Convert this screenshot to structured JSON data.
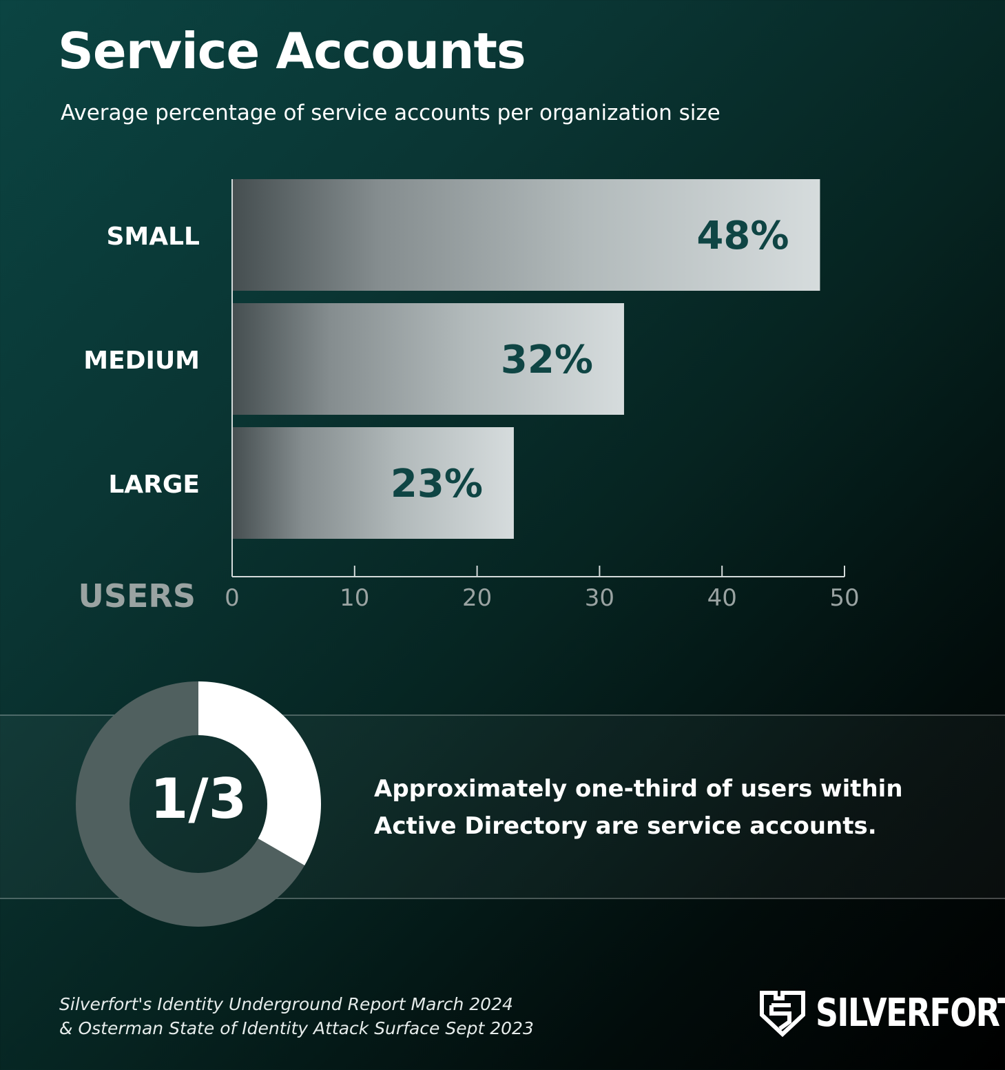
{
  "header": {
    "title": "Service Accounts",
    "subtitle": "Average percentage of service accounts per organization size"
  },
  "chart_data": {
    "type": "bar",
    "orientation": "horizontal",
    "categories": [
      "SMALL",
      "MEDIUM",
      "LARGE"
    ],
    "values": [
      48,
      32,
      23
    ],
    "data_labels": [
      "48%",
      "32%",
      "23%"
    ],
    "xlabel": "USERS",
    "xlim": [
      0,
      50
    ],
    "xticks": [
      0,
      10,
      20,
      30,
      40,
      50
    ],
    "grid": false
  },
  "donut": {
    "label": "1/3",
    "fraction": 0.3333,
    "colors": {
      "filled": "#ffffff",
      "rest": "#50605f"
    }
  },
  "stat": {
    "lines": [
      "Approximately one-third of users within",
      "Active Directory are service accounts."
    ]
  },
  "footer": {
    "source_lines": [
      "Silverfort's Identity Underground Report March 2024",
      "& Osterman State of Identity Attack Surface Sept 2023"
    ],
    "logo_text": "SILVERFORT",
    "logo_icon": "shield-logo-icon"
  },
  "colors": {
    "value_label": "#0f4544",
    "axis": "#9aa3a2",
    "category_label": "#ffffff"
  }
}
